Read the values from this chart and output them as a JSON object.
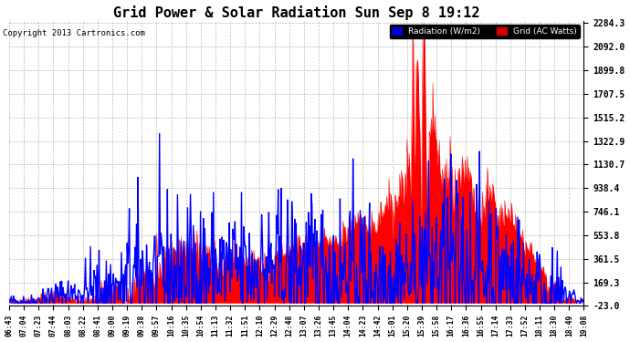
{
  "title": "Grid Power & Solar Radiation Sun Sep 8 19:12",
  "copyright": "Copyright 2013 Cartronics.com",
  "legend_radiation": "Radiation (W/m2)",
  "legend_grid": "Grid (AC Watts)",
  "legend_radiation_bg": "#0000cc",
  "legend_grid_bg": "#cc0000",
  "background_color": "#ffffff",
  "plot_bg": "#ffffff",
  "grid_color": "#aaaaaa",
  "title_fontsize": 11,
  "ytick_labels": [
    "2284.3",
    "2092.0",
    "1899.8",
    "1707.5",
    "1515.2",
    "1322.9",
    "1130.7",
    "938.4",
    "746.1",
    "553.8",
    "361.5",
    "169.3",
    "-23.0"
  ],
  "ytick_values": [
    2284.3,
    2092.0,
    1899.8,
    1707.5,
    1515.2,
    1322.9,
    1130.7,
    938.4,
    746.1,
    553.8,
    361.5,
    169.3,
    -23.0
  ],
  "ymin": -23.0,
  "ymax": 2284.3,
  "xtick_labels": [
    "06:43",
    "07:04",
    "07:23",
    "07:44",
    "08:03",
    "08:22",
    "08:41",
    "09:00",
    "09:19",
    "09:38",
    "09:57",
    "10:16",
    "10:35",
    "10:54",
    "11:13",
    "11:32",
    "11:51",
    "12:10",
    "12:29",
    "12:48",
    "13:07",
    "13:26",
    "13:45",
    "14:04",
    "14:23",
    "14:42",
    "15:01",
    "15:20",
    "15:39",
    "15:58",
    "16:17",
    "16:36",
    "16:55",
    "17:14",
    "17:33",
    "17:52",
    "18:11",
    "18:30",
    "18:49",
    "19:08"
  ],
  "fill_color_red": "#ff0000",
  "line_color_blue": "#0000ff",
  "fill_alpha": 1.0
}
